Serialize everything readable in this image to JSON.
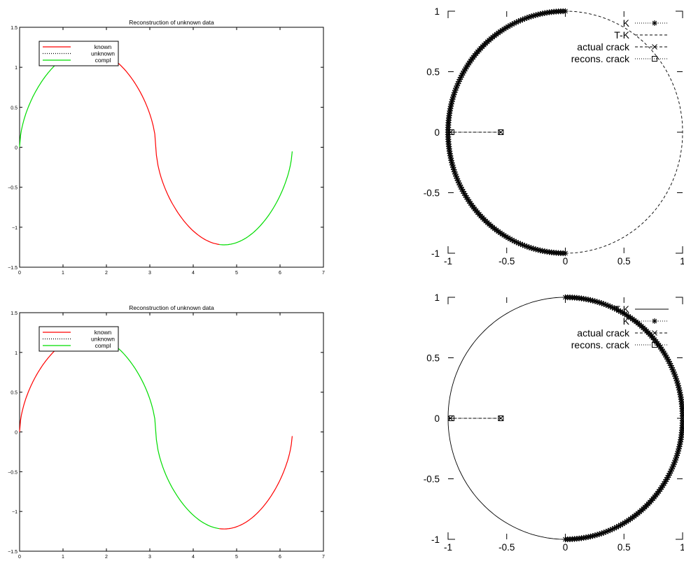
{
  "chart_data": [
    {
      "type": "line",
      "title": "Reconstruction of unknown data",
      "xlabel": "",
      "ylabel": "",
      "xlim": [
        0,
        7
      ],
      "ylim": [
        -1.5,
        1.5
      ],
      "xticks": [
        "0",
        "1",
        "2",
        "3",
        "4",
        "5",
        "6",
        "7"
      ],
      "yticks": [
        "−1.5",
        "−1",
        "−0.5",
        "0",
        "0.5",
        "1",
        "1.5"
      ],
      "legend": {
        "position": "top-left",
        "entries": [
          {
            "label": "known",
            "color": "#ff0000",
            "style": "solid"
          },
          {
            "label": "unknown",
            "color": "#000000",
            "style": "dotted"
          },
          {
            "label": "compl",
            "color": "#00dd00",
            "style": "solid"
          }
        ]
      },
      "segments": [
        {
          "series": "compl",
          "from": 0.0,
          "to": 1.63
        },
        {
          "series": "known",
          "from": 1.63,
          "to": 4.6
        },
        {
          "series": "compl",
          "from": 4.6,
          "to": 6.28
        }
      ]
    },
    {
      "type": "line",
      "title": "Reconstruction of unknown data",
      "xlabel": "",
      "ylabel": "",
      "xlim": [
        0,
        7
      ],
      "ylim": [
        -1.5,
        1.5
      ],
      "xticks": [
        "0",
        "1",
        "2",
        "3",
        "4",
        "5",
        "6",
        "7"
      ],
      "yticks": [
        "−1.5",
        "−1",
        "−0.5",
        "0",
        "0.5",
        "1",
        "1.5"
      ],
      "legend": {
        "position": "top-left",
        "entries": [
          {
            "label": "known",
            "color": "#ff0000",
            "style": "solid"
          },
          {
            "label": "unknown",
            "color": "#000000",
            "style": "dotted"
          },
          {
            "label": "compl",
            "color": "#00dd00",
            "style": "solid"
          }
        ]
      },
      "segments": [
        {
          "series": "known",
          "from": 0.0,
          "to": 1.63
        },
        {
          "series": "compl",
          "from": 1.63,
          "to": 4.6
        },
        {
          "series": "known",
          "from": 4.6,
          "to": 6.28
        }
      ]
    },
    {
      "type": "line",
      "xlim": [
        -1,
        1
      ],
      "ylim": [
        -1,
        1
      ],
      "xticks": [
        "-1",
        "-0.5",
        "0",
        "0.5",
        "1"
      ],
      "yticks": [
        "-1",
        "-0.5",
        "0",
        "0.5",
        "1"
      ],
      "legend": {
        "position": "top-right",
        "entries": [
          {
            "label": "K",
            "style": "dotted-star"
          },
          {
            "label": "T-K",
            "style": "dashed"
          },
          {
            "label": "actual crack",
            "style": "dashed-x"
          },
          {
            "label": "recons. crack",
            "style": "dotted-square"
          }
        ]
      },
      "arcs": [
        {
          "series": "K",
          "from_deg": 90,
          "to_deg": 270
        },
        {
          "series": "T-K",
          "from_deg": -90,
          "to_deg": 90
        }
      ],
      "actual_crack": {
        "x": [
          -0.55,
          -0.98
        ],
        "y": [
          0,
          0
        ]
      },
      "recons_crack": {
        "x": [
          -0.55,
          -0.97
        ],
        "y": [
          0,
          0
        ]
      }
    },
    {
      "type": "line",
      "xlim": [
        -1,
        1
      ],
      "ylim": [
        -1,
        1
      ],
      "xticks": [
        "-1",
        "-0.5",
        "0",
        "0.5",
        "1"
      ],
      "yticks": [
        "-1",
        "-0.5",
        "0",
        "0.5",
        "1"
      ],
      "legend": {
        "position": "top-right",
        "entries": [
          {
            "label": "T-K",
            "style": "solid"
          },
          {
            "label": "K",
            "style": "dotted-star"
          },
          {
            "label": "actual crack",
            "style": "dashed-x"
          },
          {
            "label": "recons. crack",
            "style": "dotted-square"
          }
        ]
      },
      "arcs": [
        {
          "series": "T-K",
          "from_deg": 90,
          "to_deg": 270
        },
        {
          "series": "K",
          "from_deg": -90,
          "to_deg": 90
        }
      ],
      "actual_crack": {
        "x": [
          -0.55,
          -0.98
        ],
        "y": [
          0,
          0
        ]
      },
      "recons_crack": {
        "x": [
          -0.55,
          -0.97
        ],
        "y": [
          0,
          0
        ]
      }
    }
  ]
}
